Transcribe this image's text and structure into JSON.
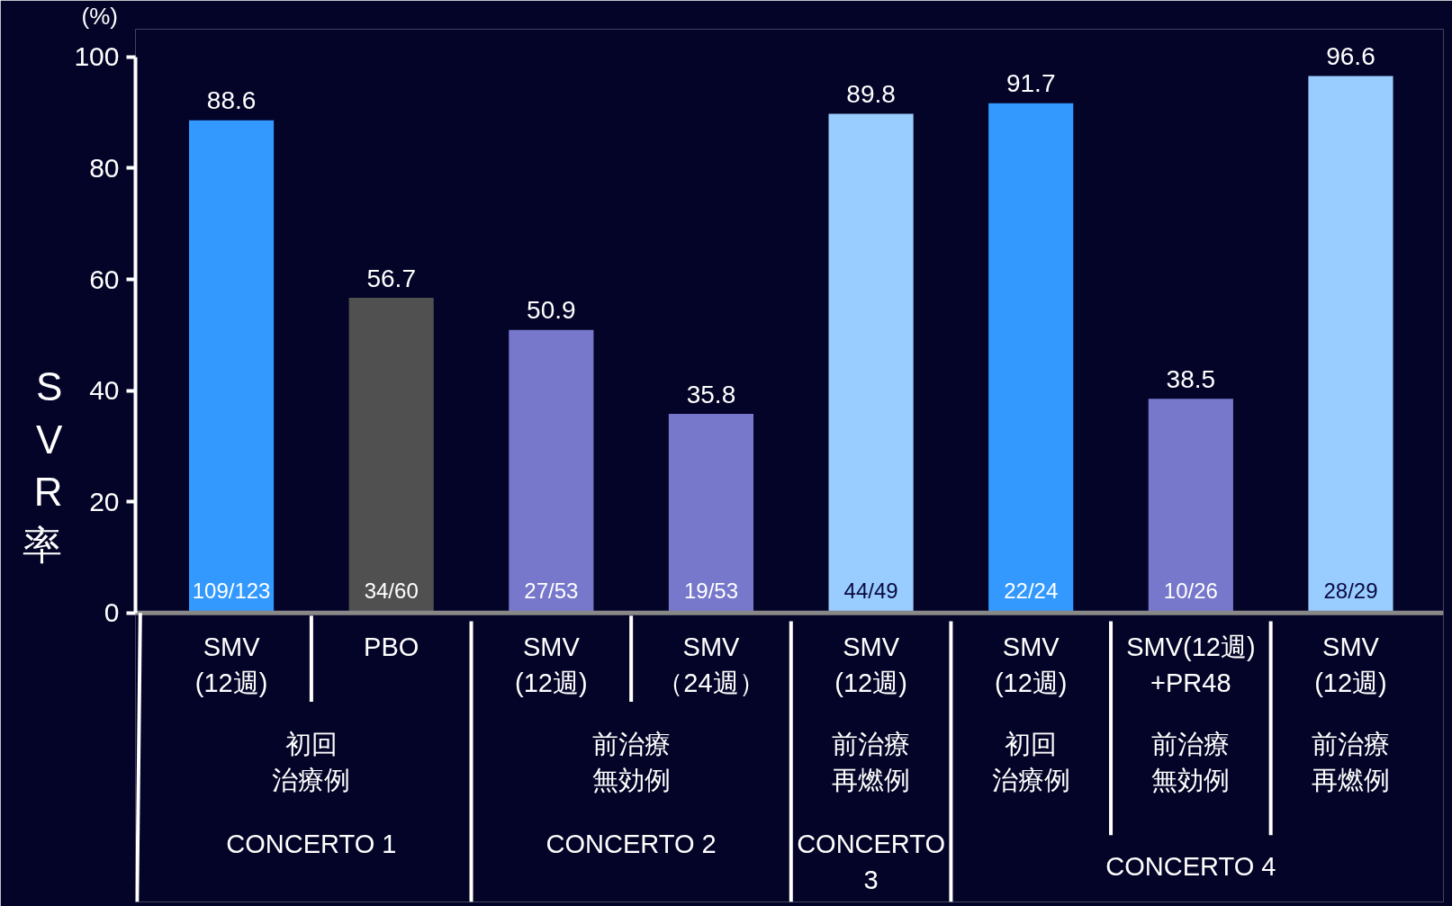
{
  "chart_data": {
    "type": "bar",
    "categories": [
      "SMV\n(12週)",
      "PBO",
      "SMV\n(12週)",
      "SMV\n（24週）",
      "SMV\n(12週)",
      "SMV\n(12週)",
      "SMV(12週)\n+PR48",
      "SMV\n(12週)"
    ],
    "values": [
      88.6,
      56.7,
      50.9,
      35.8,
      89.8,
      91.7,
      38.5,
      96.6
    ],
    "colors": [
      "#3399ff",
      "#505050",
      "#7777cc",
      "#7777cc",
      "#99ccff",
      "#3399ff",
      "#7777cc",
      "#99ccff"
    ],
    "data_labels": true,
    "ylabel": "SVR率",
    "ylim": [
      0,
      100
    ],
    "yticks": [
      0,
      20,
      40,
      60,
      80,
      100
    ],
    "grid": false,
    "annotations": [
      "(%)",
      "109/123",
      "34/60",
      "27/53",
      "19/53",
      "44/49",
      "22/24",
      "10/26",
      "28/29",
      "初回治療例",
      "前治療無効例",
      "前治療再燃例",
      "初回治療例",
      "前治療無効例",
      "前治療再燃例",
      "CONCERTO 1",
      "CONCERTO 2",
      "CONCERTO\n3",
      "CONCERTO 4"
    ]
  }
}
